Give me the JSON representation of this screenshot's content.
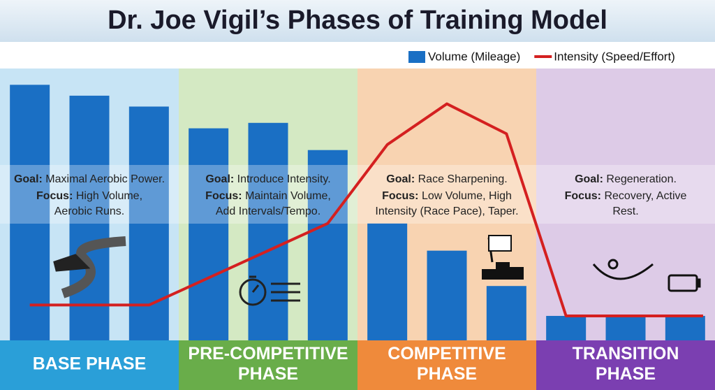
{
  "chart_data": {
    "type": "bar",
    "title": "Dr. Joe Vigil’s Phases of Training Model",
    "categories": [
      null,
      null,
      null,
      null,
      null,
      null,
      null,
      null,
      null,
      null,
      null,
      null
    ],
    "xlim": [
      0,
      12
    ],
    "ylim": [
      0,
      100
    ],
    "legend": "top-right",
    "series": [
      {
        "name": "Volume (Mileage)",
        "type": "bar",
        "color": "#1a6fc4",
        "values": [
          94,
          90,
          86,
          78,
          80,
          70,
          43,
          33,
          20,
          9,
          9,
          9
        ]
      },
      {
        "name": "Intensity (Speed/Effort)",
        "type": "line",
        "color": "#d42020",
        "x": [
          0.5,
          2.5,
          5.5,
          6.5,
          7.5,
          8.5,
          9.5,
          11.8
        ],
        "values": [
          13,
          13,
          43,
          72,
          87,
          76,
          9,
          9
        ]
      }
    ],
    "goal_label": "Goal:",
    "focus_label": "Focus:",
    "phases": [
      {
        "label": [
          "BASE PHASE"
        ],
        "color": "#2a9fd8",
        "background": "#c7e4f5",
        "goal": "Maximal Aerobic Power.",
        "focus": [
          "High Volume,",
          "Aerobic Runs."
        ]
      },
      {
        "label": [
          "PRE-COMPETITIVE",
          "PHASE"
        ],
        "color": "#69ad4a",
        "background": "#d4e9c3",
        "goal": "Introduce Intensity.",
        "focus": [
          "Maintain Volume,",
          "Add Intervals/Tempo."
        ]
      },
      {
        "label": [
          "COMPETITIVE",
          "PHASE"
        ],
        "color": "#ef8a3b",
        "background": "#f8d3b1",
        "goal": "Race Sharpening.",
        "focus": [
          "Low Volume, High",
          "Intensity (Race Pace), Taper."
        ]
      },
      {
        "label": [
          "TRANSITION",
          "PHASE"
        ],
        "color": "#7b3fb1",
        "background": "#ddcbe7",
        "goal": "Regeneration.",
        "focus": [
          "Recovery, Active",
          "Rest."
        ]
      }
    ]
  }
}
